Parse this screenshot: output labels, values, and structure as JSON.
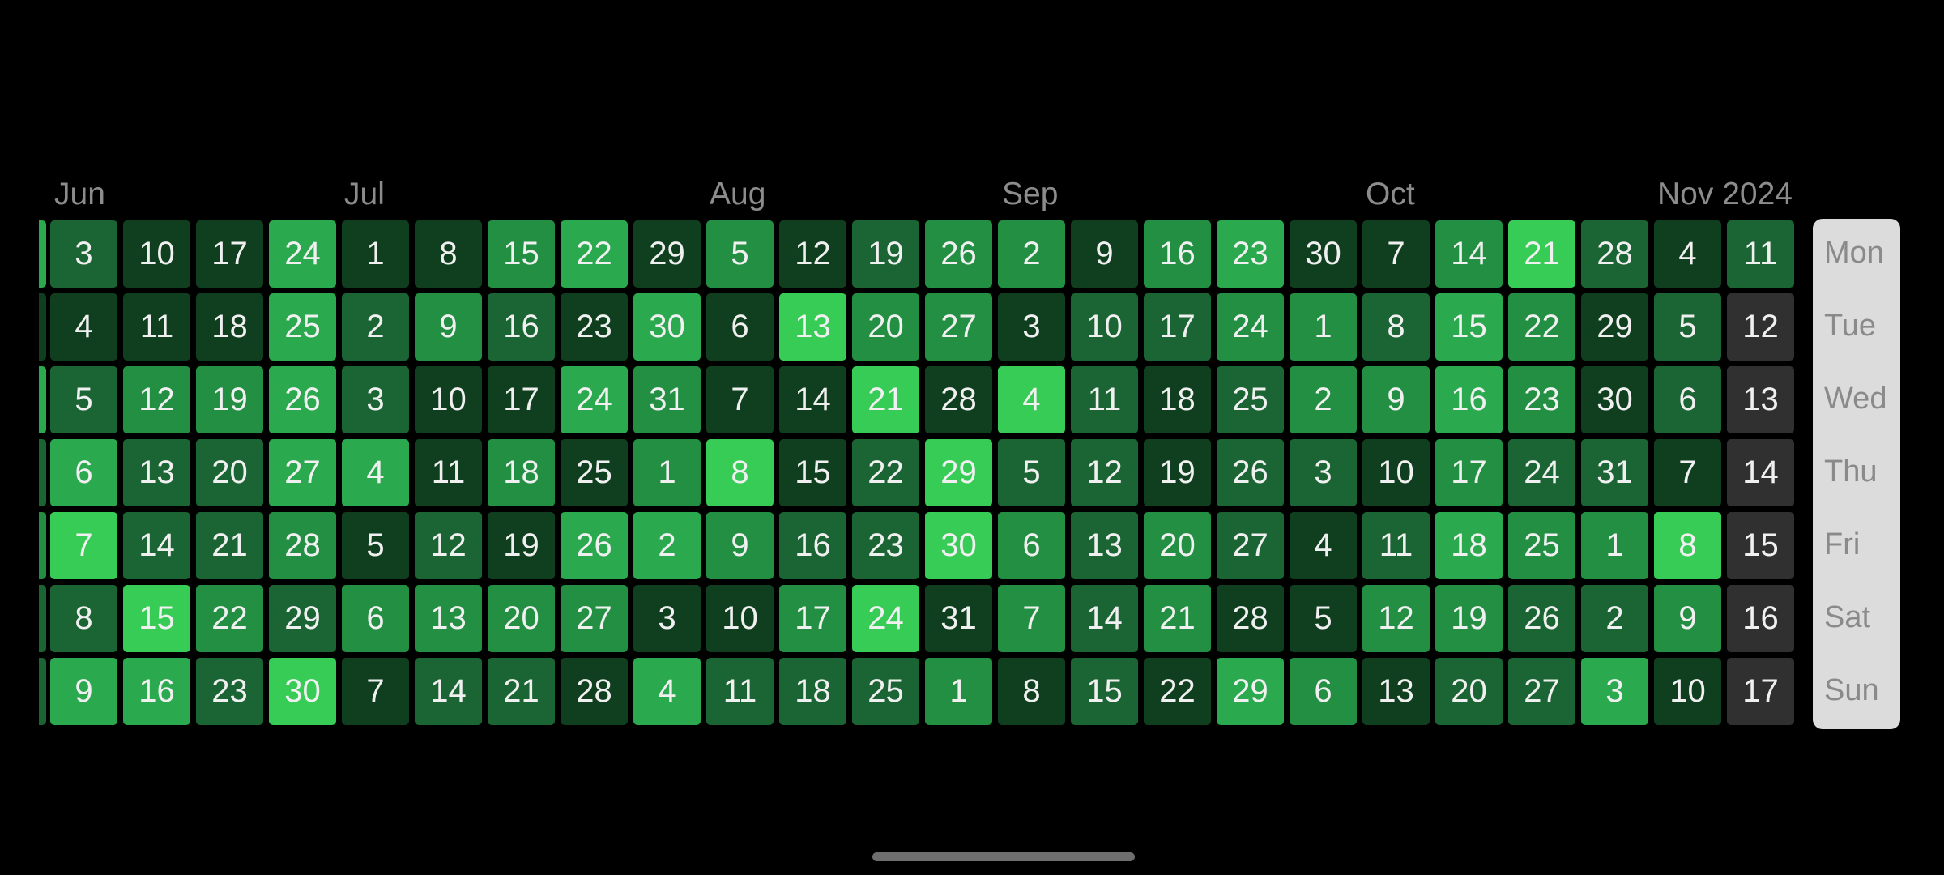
{
  "months": [
    "Jun",
    "Jul",
    "Aug",
    "Sep",
    "Oct",
    "Nov 2024"
  ],
  "weekdays": [
    "Mon",
    "Tue",
    "Wed",
    "Thu",
    "Fri",
    "Sat",
    "Sun"
  ],
  "intensity_colors": {
    "0": "#303030",
    "1": "#103f1f",
    "2": "#1b6433",
    "3": "#238f43",
    "4": "#2ba94e",
    "5": "#37cc55"
  },
  "weeks": [
    {
      "days": [
        3,
        4,
        5,
        6,
        7,
        8,
        9
      ],
      "levels": [
        2,
        1,
        2,
        4,
        5,
        2,
        4
      ]
    },
    {
      "days": [
        10,
        11,
        12,
        13,
        14,
        15,
        16
      ],
      "levels": [
        1,
        1,
        3,
        2,
        2,
        5,
        4
      ]
    },
    {
      "days": [
        17,
        18,
        19,
        20,
        21,
        22,
        23
      ],
      "levels": [
        1,
        1,
        3,
        2,
        2,
        3,
        2
      ]
    },
    {
      "days": [
        24,
        25,
        26,
        27,
        28,
        29,
        30
      ],
      "levels": [
        4,
        4,
        4,
        4,
        3,
        2,
        5
      ]
    },
    {
      "days": [
        1,
        2,
        3,
        4,
        5,
        6,
        7
      ],
      "levels": [
        1,
        2,
        2,
        4,
        1,
        3,
        1
      ]
    },
    {
      "days": [
        8,
        9,
        10,
        11,
        12,
        13,
        14
      ],
      "levels": [
        1,
        3,
        1,
        1,
        2,
        3,
        2
      ]
    },
    {
      "days": [
        15,
        16,
        17,
        18,
        19,
        20,
        21
      ],
      "levels": [
        3,
        2,
        1,
        3,
        1,
        3,
        2
      ]
    },
    {
      "days": [
        22,
        23,
        24,
        25,
        26,
        27,
        28
      ],
      "levels": [
        4,
        1,
        4,
        1,
        4,
        3,
        1
      ]
    },
    {
      "days": [
        29,
        30,
        31,
        1,
        2,
        3,
        4
      ],
      "levels": [
        1,
        4,
        3,
        3,
        4,
        1,
        4
      ]
    },
    {
      "days": [
        5,
        6,
        7,
        8,
        9,
        10,
        11
      ],
      "levels": [
        3,
        1,
        1,
        5,
        3,
        1,
        2
      ]
    },
    {
      "days": [
        12,
        13,
        14,
        15,
        16,
        17,
        18
      ],
      "levels": [
        1,
        5,
        1,
        1,
        2,
        3,
        2
      ]
    },
    {
      "days": [
        19,
        20,
        21,
        22,
        23,
        24,
        25
      ],
      "levels": [
        2,
        3,
        5,
        2,
        2,
        5,
        2
      ]
    },
    {
      "days": [
        26,
        27,
        28,
        29,
        30,
        31,
        1
      ],
      "levels": [
        3,
        3,
        1,
        5,
        5,
        1,
        3
      ]
    },
    {
      "days": [
        2,
        3,
        4,
        5,
        6,
        7,
        8
      ],
      "levels": [
        3,
        1,
        5,
        2,
        3,
        3,
        1
      ]
    },
    {
      "days": [
        9,
        10,
        11,
        12,
        13,
        14,
        15
      ],
      "levels": [
        1,
        2,
        2,
        2,
        2,
        2,
        2
      ]
    },
    {
      "days": [
        16,
        17,
        18,
        19,
        20,
        21,
        22
      ],
      "levels": [
        3,
        2,
        1,
        1,
        3,
        3,
        1
      ]
    },
    {
      "days": [
        23,
        24,
        25,
        26,
        27,
        28,
        29
      ],
      "levels": [
        4,
        3,
        2,
        2,
        2,
        1,
        4
      ]
    },
    {
      "days": [
        30,
        1,
        2,
        3,
        4,
        5,
        6
      ],
      "levels": [
        1,
        3,
        3,
        2,
        1,
        1,
        3
      ]
    },
    {
      "days": [
        7,
        8,
        9,
        10,
        11,
        12,
        13
      ],
      "levels": [
        1,
        2,
        3,
        1,
        2,
        3,
        1
      ]
    },
    {
      "days": [
        14,
        15,
        16,
        17,
        18,
        19,
        20
      ],
      "levels": [
        3,
        4,
        4,
        3,
        4,
        3,
        2
      ]
    },
    {
      "days": [
        21,
        22,
        23,
        24,
        25,
        26,
        27
      ],
      "levels": [
        5,
        3,
        3,
        2,
        3,
        2,
        2
      ]
    },
    {
      "days": [
        28,
        29,
        30,
        31,
        1,
        2,
        3
      ],
      "levels": [
        2,
        1,
        1,
        2,
        3,
        2,
        4
      ]
    },
    {
      "days": [
        4,
        5,
        6,
        7,
        8,
        9,
        10
      ],
      "levels": [
        1,
        2,
        2,
        1,
        5,
        3,
        1
      ]
    },
    {
      "days": [
        11,
        12,
        13,
        14,
        15,
        16,
        17
      ],
      "levels": [
        2,
        0,
        0,
        0,
        0,
        0,
        0
      ]
    }
  ],
  "leading_sliver_levels": [
    4,
    1,
    4,
    2,
    3,
    2,
    2
  ]
}
